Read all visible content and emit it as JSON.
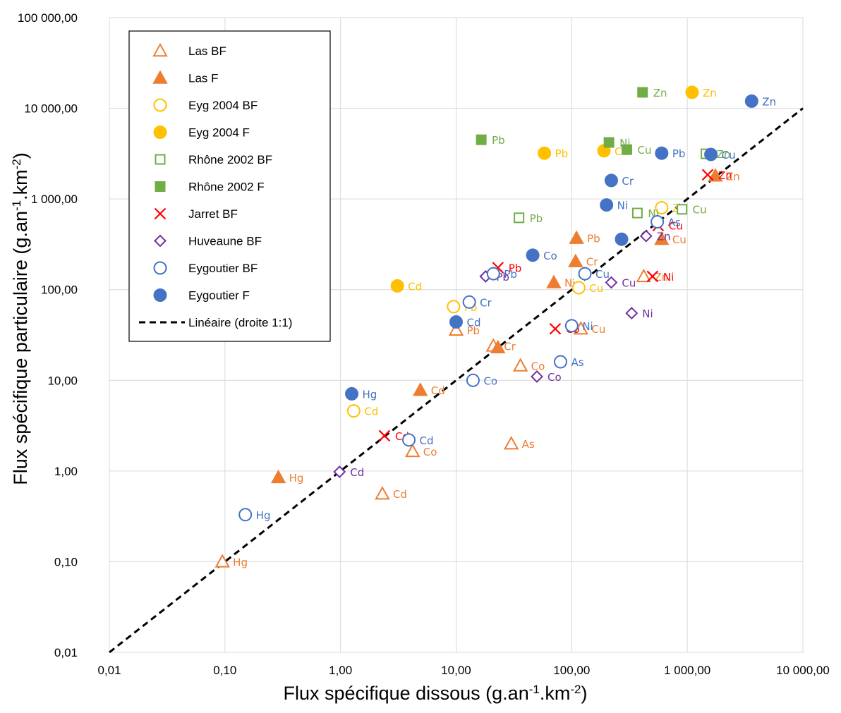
{
  "chart_data": {
    "type": "scatter",
    "title": "",
    "xlabel": "Flux spécifique dissous (g.an",
    "xlabel_sup1": "-1",
    "xlabel_mid": ".km",
    "xlabel_sup2": "-2",
    "xlabel_end": ")",
    "ylabel": "Flux spécifique particulaire (g.an",
    "ylabel_sup1": "-1",
    "ylabel_mid": ".km",
    "ylabel_sup2": "-2",
    "ylabel_end": ")",
    "x_scale": "log",
    "y_scale": "log",
    "xlim": [
      0.01,
      10000
    ],
    "ylim": [
      0.01,
      100000
    ],
    "x_ticks": [
      0.01,
      0.1,
      1,
      10,
      100,
      1000,
      10000
    ],
    "x_tick_labels": [
      "0,01",
      "0,10",
      "1,00",
      "10,00",
      "100,00",
      "1 000,00",
      "10 000,00"
    ],
    "y_ticks": [
      0.01,
      0.1,
      1,
      10,
      100,
      1000,
      10000,
      100000
    ],
    "y_tick_labels": [
      "0,01",
      "0,10",
      "1,00",
      "10,00",
      "100,00",
      "1 000,00",
      "10 000,00",
      "100 000,00"
    ],
    "grid": true,
    "legend_position": "top-left",
    "series": [
      {
        "name": "Las BF",
        "marker": "triangle-open",
        "color": "#ED7D31",
        "label_color": "#ED7D31",
        "points": [
          {
            "x": 0.095,
            "y": 0.1,
            "label": "Hg"
          },
          {
            "x": 2.3,
            "y": 0.56,
            "label": "Cd"
          },
          {
            "x": 4.2,
            "y": 1.65,
            "label": "Co"
          },
          {
            "x": 30,
            "y": 2.0,
            "label": "As"
          },
          {
            "x": 10,
            "y": 36,
            "label": "Pb"
          },
          {
            "x": 21,
            "y": 24,
            "label": "Cr"
          },
          {
            "x": 36,
            "y": 14.5,
            "label": "Co"
          },
          {
            "x": 120,
            "y": 37,
            "label": "Cu"
          },
          {
            "x": 420,
            "y": 140,
            "label": "Zn"
          }
        ]
      },
      {
        "name": "Las F",
        "marker": "triangle-filled",
        "color": "#ED7D31",
        "label_color": "#ED7D31",
        "points": [
          {
            "x": 0.29,
            "y": 0.85,
            "label": "Hg"
          },
          {
            "x": 4.9,
            "y": 7.8,
            "label": "Cd"
          },
          {
            "x": 23,
            "y": 23,
            "label": ""
          },
          {
            "x": 70,
            "y": 120,
            "label": "Ni"
          },
          {
            "x": 108,
            "y": 205,
            "label": "Cr"
          },
          {
            "x": 110,
            "y": 370,
            "label": "Pb"
          },
          {
            "x": 600,
            "y": 360,
            "label": "Cu"
          },
          {
            "x": 1750,
            "y": 1800,
            "label": "Zn"
          }
        ]
      },
      {
        "name": "Eyg 2004 BF",
        "marker": "circle-open",
        "color": "#FFC000",
        "label_color": "#FFC000",
        "points": [
          {
            "x": 1.3,
            "y": 4.6,
            "label": "Cd"
          },
          {
            "x": 9.5,
            "y": 65,
            "label": "Pb"
          },
          {
            "x": 115,
            "y": 105,
            "label": "Cu"
          },
          {
            "x": 600,
            "y": 800,
            "label": "Zn"
          }
        ]
      },
      {
        "name": "Eyg 2004 F",
        "marker": "circle-filled",
        "color": "#FFC000",
        "label_color": "#FFC000",
        "points": [
          {
            "x": 3.1,
            "y": 110,
            "label": "Cd"
          },
          {
            "x": 58,
            "y": 3200,
            "label": "Pb"
          },
          {
            "x": 190,
            "y": 3400,
            "label": "Cu"
          },
          {
            "x": 1100,
            "y": 15000,
            "label": "Zn"
          }
        ]
      },
      {
        "name": "Rhône 2002 BF",
        "marker": "square-open",
        "color": "#70AD47",
        "label_color": "#70AD47",
        "points": [
          {
            "x": 35,
            "y": 620,
            "label": "Pb"
          },
          {
            "x": 370,
            "y": 700,
            "label": "Ni"
          },
          {
            "x": 900,
            "y": 770,
            "label": "Cu"
          },
          {
            "x": 1450,
            "y": 3150,
            "label": "Zn"
          }
        ]
      },
      {
        "name": "Rhône 2002 F",
        "marker": "square-filled",
        "color": "#70AD47",
        "label_color": "#70AD47",
        "points": [
          {
            "x": 16.5,
            "y": 4500,
            "label": "Pb"
          },
          {
            "x": 210,
            "y": 4200,
            "label": "Ni"
          },
          {
            "x": 300,
            "y": 3500,
            "label": "Cu"
          },
          {
            "x": 410,
            "y": 15000,
            "label": "Zn"
          }
        ]
      },
      {
        "name": "Jarret BF",
        "marker": "cross",
        "color": "#FF0000",
        "label_color": "#FF0000",
        "points": [
          {
            "x": 2.4,
            "y": 2.45,
            "label": "Cd"
          },
          {
            "x": 23,
            "y": 175,
            "label": "Pb"
          },
          {
            "x": 72,
            "y": 37,
            "label": "Co"
          },
          {
            "x": 500,
            "y": 140,
            "label": "Ni"
          },
          {
            "x": 560,
            "y": 510,
            "label": "Cu"
          },
          {
            "x": 1500,
            "y": 1850,
            "label": "Zn"
          }
        ]
      },
      {
        "name": "Huveaune BF",
        "marker": "diamond-open",
        "color": "#7030A0",
        "label_color": "#7030A0",
        "points": [
          {
            "x": 0.98,
            "y": 0.98,
            "label": "Cd"
          },
          {
            "x": 18,
            "y": 140,
            "label": "Pb"
          },
          {
            "x": 50,
            "y": 11,
            "label": "Co"
          },
          {
            "x": 220,
            "y": 120,
            "label": "Cu"
          },
          {
            "x": 330,
            "y": 55,
            "label": "Ni"
          },
          {
            "x": 440,
            "y": 390,
            "label": "Zn"
          }
        ]
      },
      {
        "name": "Eygoutier BF",
        "marker": "circle-open",
        "color": "#4472C4",
        "label_color": "#4472C4",
        "points": [
          {
            "x": 0.15,
            "y": 0.33,
            "label": "Hg"
          },
          {
            "x": 3.9,
            "y": 2.2,
            "label": "Cd"
          },
          {
            "x": 14,
            "y": 10,
            "label": "Co"
          },
          {
            "x": 13,
            "y": 73,
            "label": "Cr"
          },
          {
            "x": 21,
            "y": 150,
            "label": "Pb"
          },
          {
            "x": 80,
            "y": 16,
            "label": "As"
          },
          {
            "x": 100,
            "y": 40,
            "label": "Ni"
          },
          {
            "x": 130,
            "y": 150,
            "label": "Cu"
          },
          {
            "x": 550,
            "y": 560,
            "label": "As"
          }
        ]
      },
      {
        "name": "Eygoutier F",
        "marker": "circle-filled",
        "color": "#4472C4",
        "label_color": "#4472C4",
        "points": [
          {
            "x": 1.25,
            "y": 7.1,
            "label": "Hg"
          },
          {
            "x": 10,
            "y": 44,
            "label": "Cd"
          },
          {
            "x": 46,
            "y": 240,
            "label": "Co"
          },
          {
            "x": 200,
            "y": 860,
            "label": "Ni"
          },
          {
            "x": 220,
            "y": 1600,
            "label": "Cr"
          },
          {
            "x": 270,
            "y": 360,
            "label": ""
          },
          {
            "x": 600,
            "y": 3200,
            "label": "Pb"
          },
          {
            "x": 1600,
            "y": 3100,
            "label": "Cu"
          },
          {
            "x": 3600,
            "y": 12000,
            "label": "Zn"
          }
        ]
      }
    ],
    "trendline": {
      "name": "Linéaire (droite 1:1)",
      "style": "dashed",
      "color": "#000000",
      "from": [
        0.01,
        0.01
      ],
      "to": [
        10000,
        10000
      ]
    }
  }
}
